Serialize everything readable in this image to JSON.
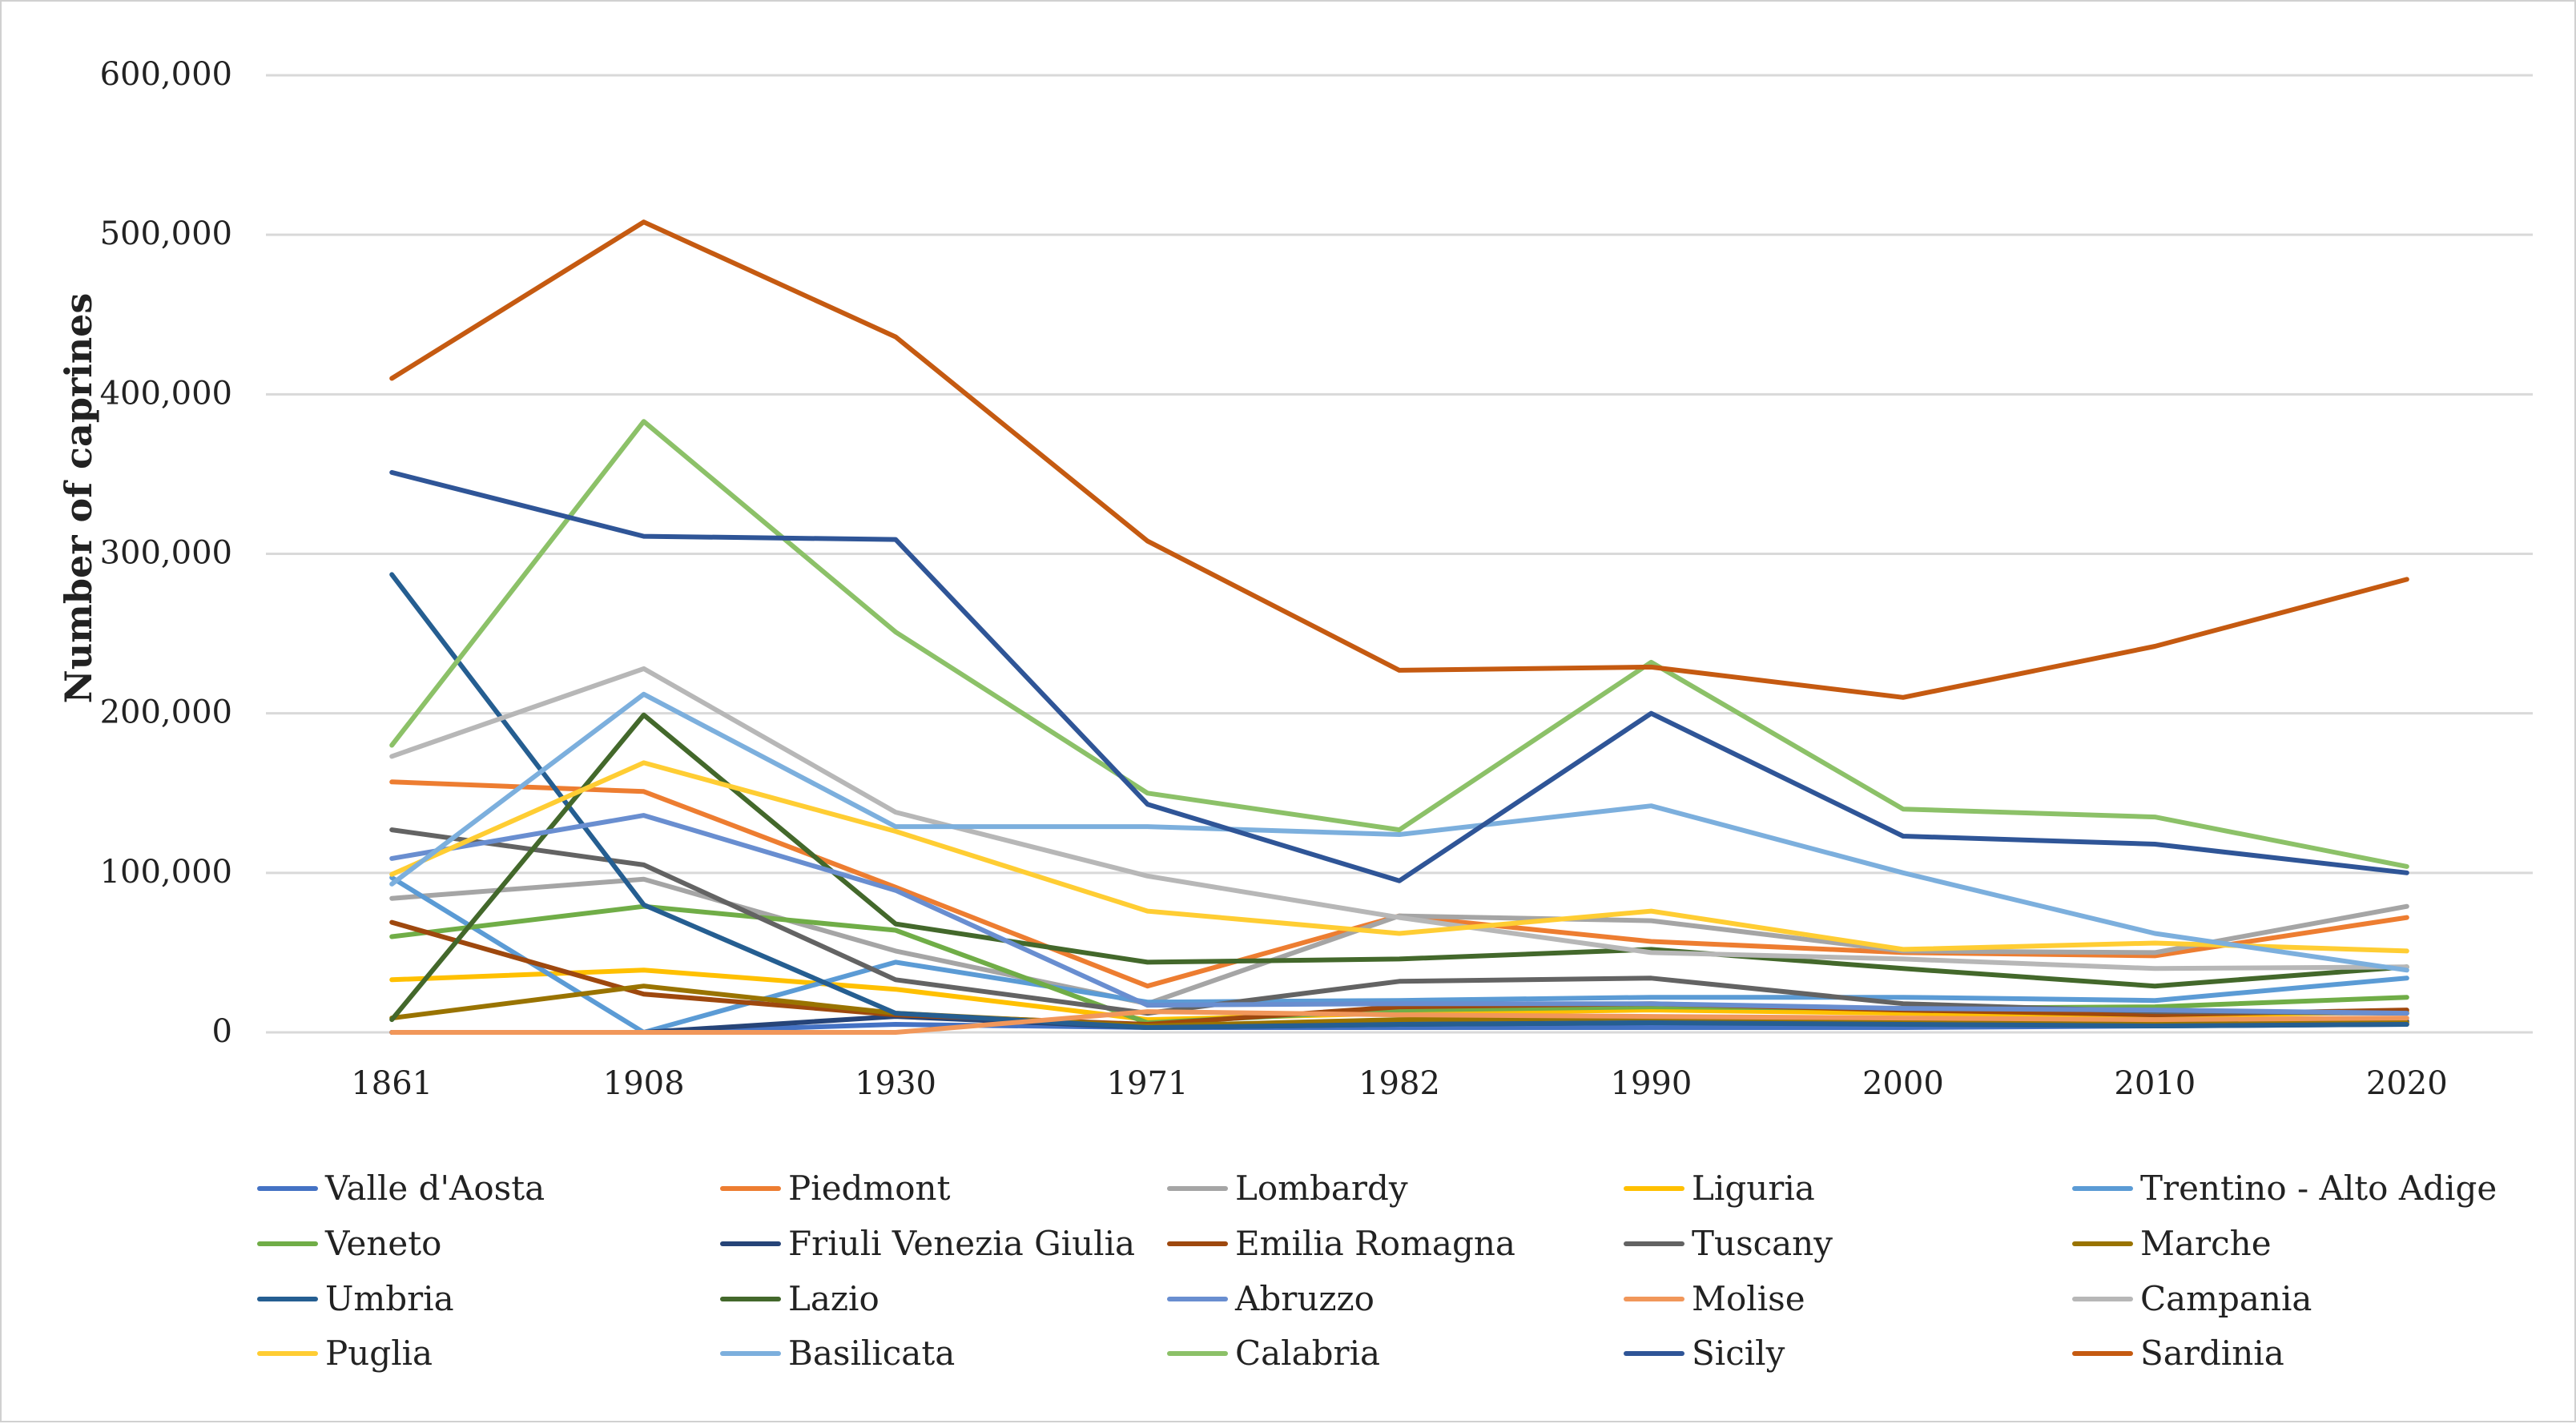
{
  "chart_data": {
    "type": "line",
    "title": "",
    "xlabel": "",
    "ylabel": "Number of caprines",
    "ylim": [
      0,
      600000
    ],
    "yticks": [
      0,
      100000,
      200000,
      300000,
      400000,
      500000,
      600000
    ],
    "ytick_labels": [
      "0",
      "100,000",
      "200,000",
      "300,000",
      "400,000",
      "500,000",
      "600,000"
    ],
    "categories": [
      "1861",
      "1908",
      "1930",
      "1971",
      "1982",
      "1990",
      "2000",
      "2010",
      "2020"
    ],
    "grid": true,
    "legend_position": "bottom",
    "series": [
      {
        "name": "Valle d'Aosta",
        "color": "#4472C4",
        "values": [
          0,
          0,
          5000,
          3000,
          3000,
          3000,
          3000,
          4000,
          5000
        ]
      },
      {
        "name": "Piedmont",
        "color": "#ED7D31",
        "values": [
          157000,
          151000,
          91000,
          29000,
          73000,
          57000,
          50000,
          48000,
          72000
        ]
      },
      {
        "name": "Lombardy",
        "color": "#A5A5A5",
        "values": [
          84000,
          96000,
          51000,
          18000,
          73000,
          70000,
          51000,
          50000,
          79000
        ]
      },
      {
        "name": "Liguria",
        "color": "#FFC000",
        "values": [
          33000,
          39000,
          27000,
          8000,
          12000,
          14000,
          12000,
          10000,
          13000
        ]
      },
      {
        "name": "Trentino - Alto Adige",
        "color": "#5B9BD5",
        "values": [
          97000,
          0,
          44000,
          19000,
          20000,
          22000,
          22000,
          20000,
          34000
        ]
      },
      {
        "name": "Veneto",
        "color": "#70AD47",
        "values": [
          60000,
          79000,
          64000,
          6000,
          14000,
          16000,
          15000,
          16000,
          22000
        ]
      },
      {
        "name": "Friuli Venezia Giulia",
        "color": "#264478",
        "values": [
          0,
          0,
          10000,
          3000,
          5000,
          6000,
          6000,
          6000,
          7000
        ]
      },
      {
        "name": "Emilia Romagna",
        "color": "#9E480E",
        "values": [
          69000,
          24000,
          11000,
          5000,
          16000,
          18000,
          14000,
          11000,
          14000
        ]
      },
      {
        "name": "Tuscany",
        "color": "#636363",
        "values": [
          127000,
          105000,
          33000,
          12000,
          32000,
          34000,
          18000,
          13000,
          12000
        ]
      },
      {
        "name": "Marche",
        "color": "#997300",
        "values": [
          9000,
          29000,
          12000,
          4000,
          8000,
          9000,
          6000,
          5000,
          6000
        ]
      },
      {
        "name": "Umbria",
        "color": "#255E91",
        "values": [
          287000,
          80000,
          12000,
          3000,
          5000,
          6000,
          5000,
          4000,
          5000
        ]
      },
      {
        "name": "Lazio",
        "color": "#43682B",
        "values": [
          8000,
          199000,
          68000,
          44000,
          46000,
          52000,
          40000,
          29000,
          41000
        ]
      },
      {
        "name": "Abruzzo",
        "color": "#698ED0",
        "values": [
          109000,
          136000,
          89000,
          17000,
          18000,
          18000,
          15000,
          14000,
          12000
        ]
      },
      {
        "name": "Molise",
        "color": "#F1975A",
        "values": [
          0,
          0,
          0,
          13000,
          11000,
          10000,
          9000,
          8000,
          9000
        ]
      },
      {
        "name": "Campania",
        "color": "#B7B7B7",
        "values": [
          173000,
          228000,
          138000,
          98000,
          72000,
          50000,
          46000,
          40000,
          41000
        ]
      },
      {
        "name": "Puglia",
        "color": "#FFCD33",
        "values": [
          99000,
          169000,
          126000,
          76000,
          62000,
          76000,
          52000,
          56000,
          51000
        ]
      },
      {
        "name": "Basilicata",
        "color": "#7CAFDD",
        "values": [
          93000,
          212000,
          129000,
          129000,
          124000,
          142000,
          100000,
          62000,
          39000
        ]
      },
      {
        "name": "Calabria",
        "color": "#8CC168",
        "values": [
          180000,
          383000,
          251000,
          150000,
          127000,
          232000,
          140000,
          135000,
          104000
        ]
      },
      {
        "name": "Sicily",
        "color": "#2F5597",
        "values": [
          351000,
          311000,
          309000,
          143000,
          95000,
          200000,
          123000,
          118000,
          100000
        ]
      },
      {
        "name": "Sardinia",
        "color": "#C55A11",
        "values": [
          410000,
          508000,
          436000,
          308000,
          227000,
          229000,
          210000,
          242000,
          284000
        ]
      }
    ]
  }
}
